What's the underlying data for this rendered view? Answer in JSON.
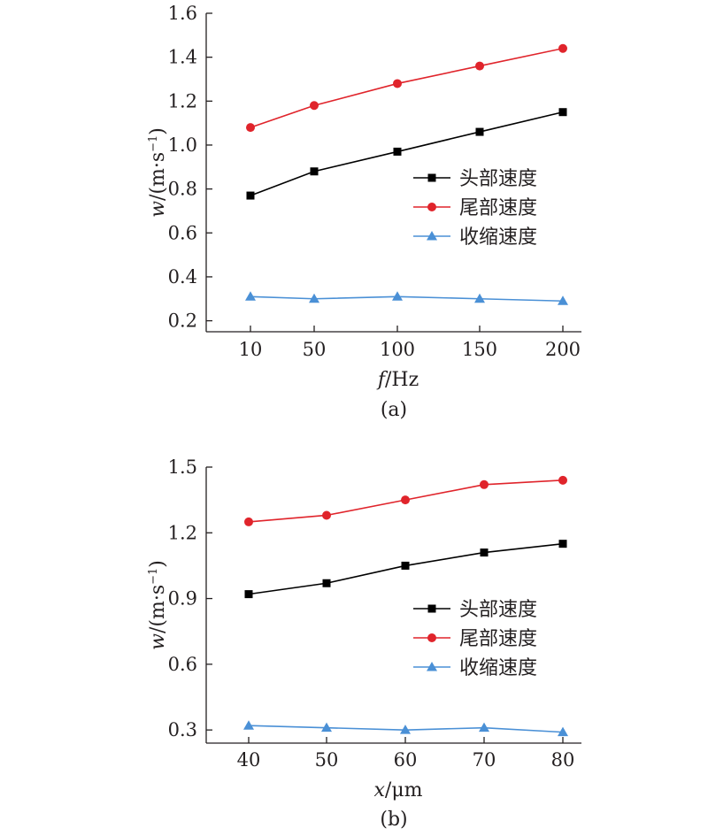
{
  "chart_data": [
    {
      "type": "line",
      "caption": "(a)",
      "x": [
        10,
        50,
        100,
        150,
        200
      ],
      "x_tick_labels": [
        "10",
        "50",
        "100",
        "150",
        "200"
      ],
      "xlabel_var": "f",
      "xlabel_unit": "/Hz",
      "ylabel_var": "w",
      "ylabel_unit": "/(m·s",
      "ylabel_exp": "−1",
      "ylabel_close": ")",
      "ylim": [
        0.15,
        1.6
      ],
      "y_ticks": [
        0.2,
        0.4,
        0.6,
        0.8,
        1.0,
        1.2,
        1.4,
        1.6
      ],
      "y_tick_labels": [
        "0.2",
        "0.4",
        "0.6",
        "0.8",
        "1.0",
        "1.2",
        "1.4",
        "1.6"
      ],
      "legend_position": "right",
      "series": [
        {
          "name": "头部速度",
          "marker": "square",
          "color": "#000000",
          "values": [
            0.77,
            0.88,
            0.97,
            1.06,
            1.15
          ]
        },
        {
          "name": "尾部速度",
          "marker": "circle",
          "color": "#e0242b",
          "values": [
            1.08,
            1.18,
            1.28,
            1.36,
            1.44
          ]
        },
        {
          "name": "收缩速度",
          "marker": "triangle",
          "color": "#4a90d6",
          "values": [
            0.31,
            0.3,
            0.31,
            0.3,
            0.29
          ]
        }
      ]
    },
    {
      "type": "line",
      "caption": "(b)",
      "x": [
        40,
        50,
        60,
        70,
        80
      ],
      "x_tick_labels": [
        "40",
        "50",
        "60",
        "70",
        "80"
      ],
      "xlabel_var": "x",
      "xlabel_unit": "/μm",
      "ylabel_var": "w",
      "ylabel_unit": "/(m·s",
      "ylabel_exp": "−1",
      "ylabel_close": ")",
      "ylim": [
        0.24,
        1.5
      ],
      "y_ticks": [
        0.3,
        0.6,
        0.9,
        1.2,
        1.5
      ],
      "y_tick_labels": [
        "0.3",
        "0.6",
        "0.9",
        "1.2",
        "1.5"
      ],
      "legend_position": "right",
      "series": [
        {
          "name": "头部速度",
          "marker": "square",
          "color": "#000000",
          "values": [
            0.92,
            0.97,
            1.05,
            1.11,
            1.15
          ]
        },
        {
          "name": "尾部速度",
          "marker": "circle",
          "color": "#e0242b",
          "values": [
            1.25,
            1.28,
            1.35,
            1.42,
            1.44
          ]
        },
        {
          "name": "收缩速度",
          "marker": "triangle",
          "color": "#4a90d6",
          "values": [
            0.32,
            0.31,
            0.3,
            0.31,
            0.29
          ]
        }
      ]
    }
  ]
}
